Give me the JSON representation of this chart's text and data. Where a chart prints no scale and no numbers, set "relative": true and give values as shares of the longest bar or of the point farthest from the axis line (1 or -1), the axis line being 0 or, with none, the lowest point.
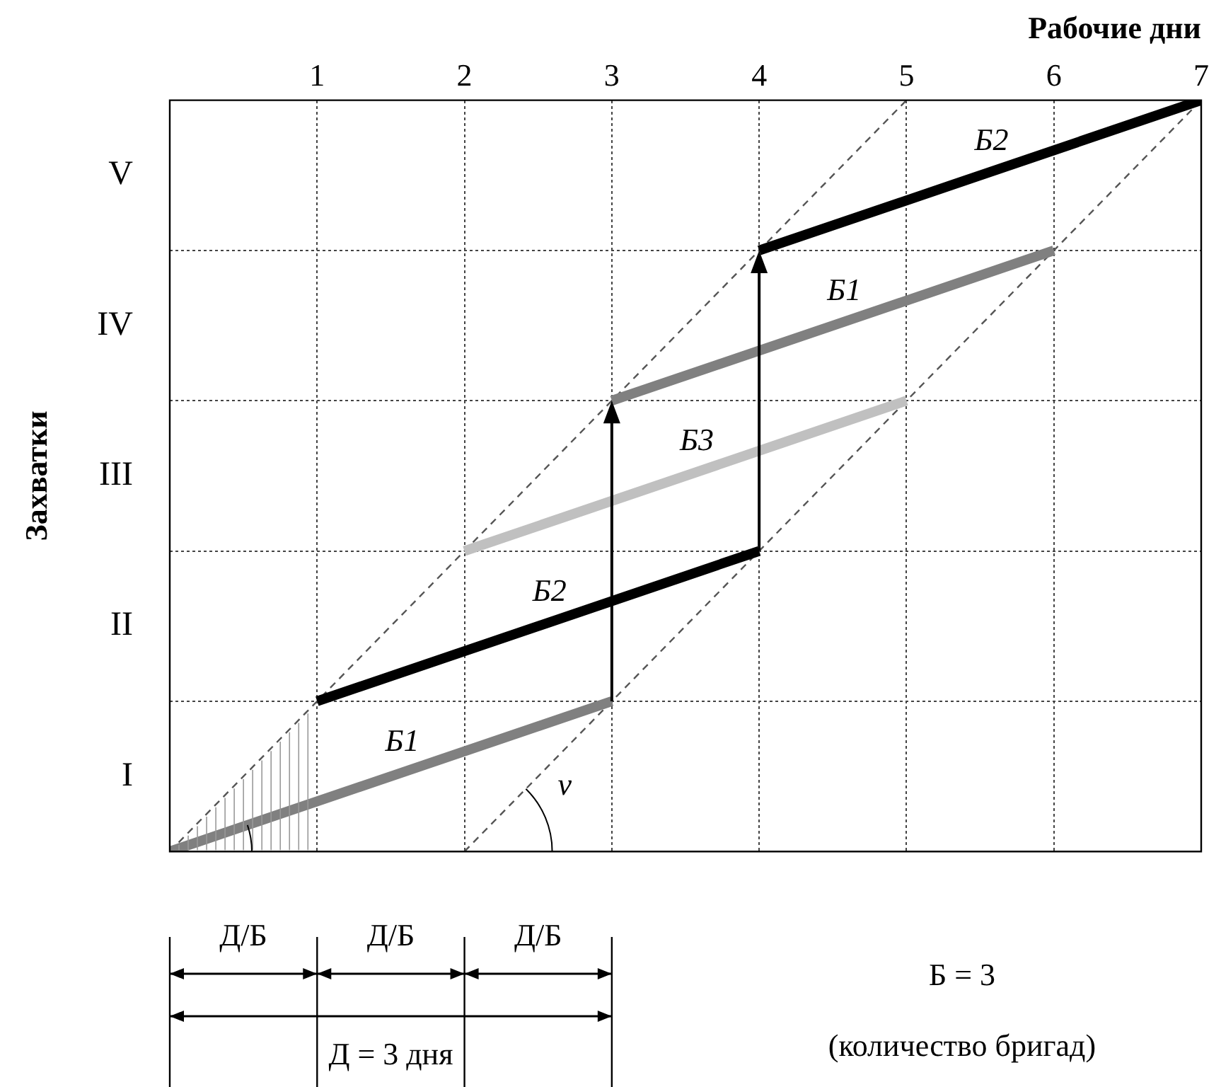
{
  "chart_data": {
    "type": "line",
    "xlabel": "Рабочие дни",
    "ylabel": "Захватки",
    "xlim": [
      0,
      7
    ],
    "xticks": [
      1,
      2,
      3,
      4,
      5,
      6,
      7
    ],
    "relative": true,
    "grid": true,
    "legend": false,
    "marker": "none",
    "line_style": "solid",
    "series": [
      {
        "name": "Б1",
        "color": "#808080",
        "x": [
          0,
          3
        ],
        "values": [
          0,
          0.2
        ]
      },
      {
        "name": "Б2",
        "color": "#000000",
        "x": [
          1,
          4
        ],
        "values": [
          0.2,
          0.4
        ]
      },
      {
        "name": "Б3",
        "color": "#c0c0c0",
        "x": [
          2,
          5
        ],
        "values": [
          0.4,
          0.6
        ]
      },
      {
        "name": "Б1",
        "color": "#808080",
        "x": [
          3,
          6
        ],
        "values": [
          0.6,
          0.8
        ]
      },
      {
        "name": "Б2",
        "color": "#000000",
        "x": [
          4,
          7
        ],
        "values": [
          0.8,
          1
        ]
      },
      {
        "color": "#555555",
        "x": [
          0,
          5
        ],
        "values": [
          0,
          1
        ],
        "line_style": "dashed"
      },
      {
        "color": "#555555",
        "x": [
          2,
          7
        ],
        "values": [
          0,
          1
        ],
        "line_style": "dashed"
      }
    ],
    "annotations": [
      "I",
      "II",
      "III",
      "IV",
      "V",
      "v",
      "Д/Б",
      "Д/Б",
      "Д/Б",
      "Д = 3 дня",
      "Б = 3",
      "(количество бригад)"
    ]
  }
}
